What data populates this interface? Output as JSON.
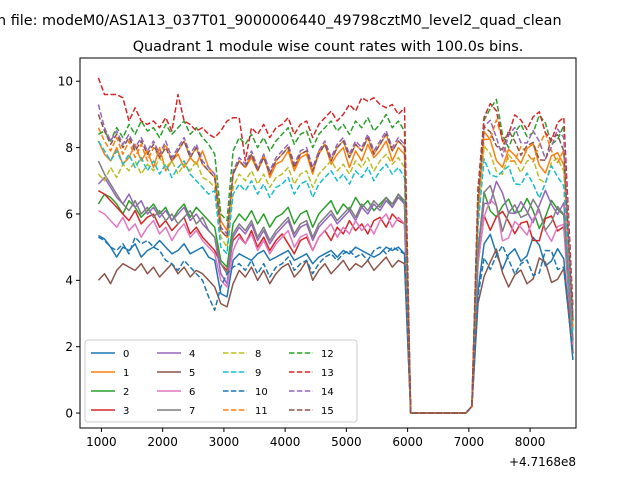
{
  "chart_data": {
    "type": "line",
    "suptitle": "n file: modeM0/AS1A13_037T01_9000006440_49798cztM0_level2_quad_clean",
    "title": "Quadrant 1 module wise count rates with 100.0s bins.",
    "xlabel": "",
    "ylabel": "",
    "x_offset_label": "+4.7168e8",
    "xlim": [
      650,
      8750
    ],
    "ylim": [
      -0.45,
      10.7
    ],
    "xticks": [
      {
        "value": 1000,
        "label": "1000"
      },
      {
        "value": 2000,
        "label": "2000"
      },
      {
        "value": 3000,
        "label": "3000"
      },
      {
        "value": 4000,
        "label": "4000"
      },
      {
        "value": 5000,
        "label": "5000"
      },
      {
        "value": 6000,
        "label": "6000"
      },
      {
        "value": 7000,
        "label": "7000"
      },
      {
        "value": 8000,
        "label": "8000"
      }
    ],
    "yticks": [
      {
        "value": 0,
        "label": "0"
      },
      {
        "value": 2,
        "label": "2"
      },
      {
        "value": 4,
        "label": "4"
      },
      {
        "value": 6,
        "label": "6"
      },
      {
        "value": 8,
        "label": "8"
      },
      {
        "value": 10,
        "label": "10"
      }
    ],
    "legend": {
      "placement": "lower-left",
      "columns": 4
    },
    "x_start": 950,
    "x_step": 100,
    "gap_segment": {
      "start": 6050,
      "end": 6950,
      "value": 0
    },
    "series": [
      {
        "name": "0",
        "color": "#1f77b4",
        "style": "solid",
        "seg_a": [
          5.35,
          5.25,
          5.0,
          4.7,
          5.0,
          4.9,
          5.1,
          4.7,
          4.9,
          5.0,
          5.2,
          5.0,
          4.8,
          4.9,
          5.1,
          4.8,
          4.9,
          5.0,
          4.7,
          4.6,
          3.6,
          3.5,
          4.6,
          4.8,
          4.7,
          4.6,
          4.8,
          4.9,
          4.6,
          4.7,
          4.8,
          4.9,
          4.6,
          4.7,
          4.8,
          4.5,
          4.7,
          4.8,
          4.9,
          4.7,
          4.9,
          4.8,
          5.0,
          4.9,
          4.8,
          4.7,
          4.8,
          5.0,
          4.9,
          5.0,
          4.8
        ],
        "peak_b": 4.9,
        "level_b": 4.8,
        "end": 1.6
      },
      {
        "name": "1",
        "color": "#ff7f0e",
        "style": "solid",
        "seg_a": [
          8.2,
          7.8,
          7.6,
          8.0,
          7.5,
          7.7,
          8.1,
          7.6,
          7.9,
          7.4,
          8.0,
          7.3,
          7.6,
          7.8,
          7.4,
          7.7,
          7.5,
          7.9,
          7.4,
          7.2,
          5.8,
          5.5,
          7.2,
          7.6,
          7.4,
          7.7,
          7.3,
          7.8,
          7.1,
          7.5,
          7.6,
          7.9,
          7.3,
          7.7,
          7.8,
          7.2,
          7.9,
          8.1,
          7.5,
          7.8,
          8.0,
          7.4,
          7.9,
          7.6,
          8.1,
          7.7,
          7.9,
          8.2,
          7.6,
          8.0,
          7.8
        ],
        "peak_b": 8.1,
        "level_b": 7.7,
        "end": 2.6
      },
      {
        "name": "2",
        "color": "#2ca02c",
        "style": "solid",
        "seg_a": [
          6.3,
          6.6,
          6.5,
          6.3,
          6.0,
          6.4,
          6.2,
          5.9,
          6.1,
          6.3,
          6.0,
          6.2,
          5.8,
          6.1,
          6.3,
          5.9,
          6.2,
          6.0,
          5.8,
          5.6,
          4.6,
          4.4,
          5.7,
          6.0,
          5.8,
          6.1,
          5.7,
          6.0,
          5.6,
          5.9,
          6.0,
          6.2,
          5.7,
          6.0,
          6.1,
          5.6,
          6.0,
          6.2,
          6.4,
          6.0,
          6.3,
          6.1,
          6.5,
          6.2,
          6.4,
          6.1,
          6.3,
          6.5,
          6.2,
          6.6,
          6.3
        ],
        "peak_b": 6.4,
        "level_b": 6.1,
        "end": 2.1
      },
      {
        "name": "3",
        "color": "#d62728",
        "style": "solid",
        "seg_a": [
          6.7,
          6.6,
          6.4,
          6.2,
          6.0,
          5.8,
          6.1,
          5.7,
          5.9,
          6.0,
          5.6,
          5.8,
          5.5,
          5.7,
          5.9,
          5.4,
          5.6,
          5.3,
          5.1,
          4.9,
          4.5,
          4.3,
          5.2,
          5.4,
          5.1,
          5.5,
          5.0,
          5.3,
          4.9,
          5.2,
          5.4,
          5.1,
          4.8,
          5.2,
          5.3,
          4.9,
          5.3,
          5.5,
          5.2,
          5.6,
          5.4,
          5.8,
          5.5,
          5.7,
          5.4,
          5.8,
          5.9,
          5.6,
          6.0,
          5.8,
          5.7
        ],
        "peak_b": 6.0,
        "level_b": 5.6,
        "end": 1.8
      },
      {
        "name": "4",
        "color": "#9467bd",
        "style": "solid",
        "seg_a": [
          6.9,
          7.1,
          6.8,
          6.5,
          6.3,
          6.6,
          6.2,
          6.4,
          6.0,
          6.2,
          5.9,
          6.1,
          5.8,
          6.0,
          6.2,
          5.8,
          6.0,
          5.7,
          5.5,
          5.3,
          4.2,
          3.9,
          5.3,
          5.6,
          5.4,
          5.7,
          5.2,
          5.5,
          5.1,
          5.4,
          5.6,
          5.8,
          5.3,
          5.6,
          5.7,
          5.2,
          5.6,
          5.8,
          6.0,
          5.7,
          5.9,
          6.1,
          5.8,
          6.2,
          6.0,
          6.3,
          6.1,
          6.4,
          6.2,
          6.5,
          6.3
        ],
        "peak_b": 6.6,
        "level_b": 6.2,
        "end": 2.2
      },
      {
        "name": "5",
        "color": "#8c564b",
        "style": "solid",
        "seg_a": [
          4.0,
          4.2,
          3.9,
          4.3,
          4.5,
          4.4,
          4.3,
          4.5,
          4.2,
          4.4,
          4.1,
          4.3,
          4.5,
          4.2,
          4.4,
          4.1,
          4.3,
          4.2,
          4.0,
          3.8,
          3.3,
          3.2,
          3.9,
          4.3,
          4.1,
          4.4,
          4.0,
          4.3,
          3.9,
          4.2,
          4.4,
          4.5,
          4.1,
          4.3,
          4.6,
          4.0,
          4.3,
          4.5,
          4.2,
          4.4,
          4.6,
          4.3,
          4.5,
          4.4,
          4.6,
          4.3,
          4.5,
          4.7,
          4.4,
          4.6,
          4.5
        ],
        "peak_b": 4.4,
        "level_b": 4.2,
        "end": 1.8
      },
      {
        "name": "6",
        "color": "#e377c2",
        "style": "solid",
        "seg_a": [
          6.1,
          6.0,
          5.8,
          5.6,
          5.9,
          5.5,
          5.7,
          5.3,
          5.6,
          5.8,
          5.4,
          5.6,
          5.2,
          5.5,
          5.7,
          5.3,
          5.5,
          5.2,
          5.0,
          4.8,
          4.0,
          3.8,
          4.9,
          5.3,
          5.1,
          5.4,
          4.9,
          5.2,
          4.8,
          5.1,
          5.3,
          5.5,
          5.0,
          5.3,
          5.4,
          4.9,
          5.3,
          5.5,
          5.7,
          5.3,
          5.6,
          5.4,
          5.8,
          5.5,
          5.7,
          5.4,
          5.8,
          6.0,
          5.6,
          5.9,
          5.7
        ],
        "peak_b": 6.0,
        "level_b": 5.6,
        "end": 2.0
      },
      {
        "name": "7",
        "color": "#7f7f7f",
        "style": "solid",
        "seg_a": [
          7.6,
          7.2,
          6.9,
          6.6,
          6.3,
          6.1,
          6.4,
          6.0,
          6.2,
          5.9,
          6.1,
          5.8,
          6.0,
          5.7,
          5.9,
          6.1,
          5.7,
          5.9,
          5.5,
          5.3,
          4.5,
          4.2,
          5.4,
          5.7,
          5.5,
          5.8,
          5.3,
          5.6,
          5.2,
          5.5,
          5.7,
          5.9,
          5.4,
          5.7,
          5.8,
          5.3,
          5.7,
          5.9,
          6.1,
          5.8,
          6.0,
          6.2,
          5.9,
          6.3,
          6.1,
          6.4,
          6.2,
          6.5,
          6.3,
          6.6,
          6.4
        ],
        "peak_b": 6.5,
        "level_b": 6.0,
        "end": 2.2
      },
      {
        "name": "8",
        "color": "#bcbd22",
        "style": "dashed",
        "seg_a": [
          7.2,
          7.0,
          7.4,
          7.1,
          7.5,
          7.3,
          7.6,
          7.2,
          7.5,
          7.3,
          7.7,
          7.4,
          7.6,
          7.2,
          7.5,
          7.3,
          7.6,
          7.1,
          7.0,
          6.8,
          5.3,
          5.0,
          6.8,
          7.2,
          7.0,
          7.3,
          6.9,
          7.2,
          6.8,
          7.1,
          7.2,
          7.4,
          6.9,
          7.2,
          7.3,
          6.8,
          7.2,
          7.4,
          7.6,
          7.3,
          7.5,
          7.2,
          7.6,
          7.4,
          7.7,
          7.3,
          7.6,
          7.8,
          7.5,
          7.7,
          7.4
        ],
        "peak_b": 7.8,
        "level_b": 7.4,
        "end": 2.5
      },
      {
        "name": "9",
        "color": "#17becf",
        "style": "dashed",
        "seg_a": [
          8.2,
          7.9,
          7.6,
          7.9,
          7.5,
          7.8,
          7.4,
          7.7,
          7.3,
          7.6,
          7.2,
          7.5,
          7.1,
          7.4,
          7.6,
          7.2,
          7.0,
          6.8,
          6.6,
          6.7,
          5.0,
          4.8,
          6.6,
          6.9,
          6.7,
          7.0,
          6.6,
          6.9,
          6.5,
          6.8,
          6.9,
          7.1,
          6.6,
          6.9,
          7.0,
          6.5,
          6.9,
          7.1,
          7.3,
          7.0,
          7.2,
          6.9,
          7.3,
          7.1,
          7.4,
          7.0,
          7.3,
          7.5,
          7.2,
          7.4,
          7.1
        ],
        "peak_b": 7.5,
        "level_b": 7.0,
        "end": 2.4
      },
      {
        "name": "10",
        "color": "#1f77b4",
        "style": "dashed",
        "seg_a": [
          5.3,
          5.2,
          5.0,
          4.9,
          5.1,
          4.8,
          5.3,
          5.1,
          5.2,
          5.0,
          4.9,
          4.6,
          4.5,
          4.3,
          4.6,
          4.4,
          4.2,
          4.0,
          3.5,
          3.1,
          3.8,
          4.2,
          4.4,
          4.5,
          4.3,
          4.6,
          4.2,
          4.5,
          4.1,
          4.4,
          4.5,
          4.7,
          4.3,
          4.5,
          4.6,
          4.2,
          4.5,
          4.7,
          4.8,
          4.6,
          4.8,
          4.9,
          4.7,
          4.8,
          4.6,
          4.9,
          5.0,
          4.8,
          5.0,
          4.9,
          4.8
        ],
        "peak_b": 4.7,
        "level_b": 4.5,
        "end": 1.8
      },
      {
        "name": "11",
        "color": "#ff7f0e",
        "style": "dashed",
        "seg_a": [
          8.6,
          8.2,
          7.9,
          8.3,
          7.8,
          8.2,
          7.7,
          8.1,
          7.6,
          8.0,
          7.7,
          8.1,
          7.6,
          7.9,
          8.2,
          7.7,
          8.0,
          7.5,
          7.3,
          7.1,
          5.5,
          5.3,
          7.2,
          7.6,
          7.4,
          7.8,
          7.3,
          7.7,
          7.2,
          7.6,
          7.8,
          8.0,
          7.4,
          7.8,
          7.9,
          7.3,
          7.8,
          8.1,
          7.6,
          8.0,
          8.2,
          7.7,
          8.1,
          7.9,
          8.3,
          7.8,
          8.1,
          8.4,
          7.9,
          8.2,
          8.0
        ],
        "peak_b": 8.4,
        "level_b": 7.9,
        "end": 2.6
      },
      {
        "name": "12",
        "color": "#2ca02c",
        "style": "dashed",
        "seg_a": [
          8.4,
          8.5,
          8.2,
          8.6,
          8.3,
          8.7,
          8.4,
          8.8,
          8.5,
          8.6,
          8.3,
          8.7,
          8.4,
          8.6,
          8.8,
          8.4,
          8.6,
          8.3,
          8.1,
          7.8,
          6.0,
          5.8,
          7.9,
          8.3,
          8.1,
          8.4,
          8.0,
          8.3,
          7.9,
          8.2,
          8.4,
          8.6,
          8.1,
          8.4,
          8.5,
          8.0,
          8.4,
          8.6,
          8.8,
          8.5,
          8.7,
          8.4,
          8.8,
          8.6,
          8.9,
          8.5,
          8.7,
          9.0,
          8.6,
          8.8,
          8.5
        ],
        "peak_b": 9.0,
        "level_b": 8.5,
        "end": 2.8
      },
      {
        "name": "13",
        "color": "#d62728",
        "style": "dashed",
        "seg_a": [
          10.1,
          9.6,
          9.6,
          9.6,
          9.5,
          8.8,
          9.2,
          8.8,
          8.7,
          8.8,
          8.6,
          8.9,
          8.5,
          9.6,
          8.8,
          8.7,
          8.5,
          8.6,
          8.4,
          8.3,
          8.5,
          8.8,
          8.9,
          8.9,
          7.6,
          8.6,
          8.4,
          8.7,
          8.3,
          8.6,
          8.7,
          8.9,
          8.4,
          8.7,
          8.8,
          8.3,
          8.7,
          8.9,
          9.1,
          8.8,
          9.0,
          9.3,
          9.1,
          9.5,
          9.4,
          9.5,
          9.3,
          9.2,
          9.3,
          9.0,
          9.2
        ],
        "peak_b": 9.0,
        "level_b": 8.7,
        "end": 3.2
      },
      {
        "name": "14",
        "color": "#9467bd",
        "style": "dashed",
        "seg_a": [
          9.3,
          8.6,
          8.2,
          8.5,
          8.1,
          8.4,
          8.0,
          8.3,
          7.9,
          8.2,
          7.8,
          8.2,
          7.7,
          8.0,
          8.3,
          7.8,
          8.1,
          7.6,
          7.4,
          7.2,
          5.6,
          5.4,
          7.3,
          7.7,
          7.5,
          7.9,
          7.4,
          7.8,
          7.3,
          7.7,
          7.9,
          8.1,
          7.5,
          7.9,
          8.0,
          7.4,
          7.9,
          8.2,
          7.7,
          8.1,
          8.3,
          7.8,
          8.2,
          8.0,
          8.4,
          7.9,
          8.2,
          8.5,
          8.0,
          8.3,
          8.1
        ],
        "peak_b": 8.6,
        "level_b": 8.2,
        "end": 2.9
      },
      {
        "name": "15",
        "color": "#8c564b",
        "style": "dashed",
        "seg_a": [
          9.0,
          8.5,
          8.1,
          8.4,
          8.0,
          8.3,
          7.9,
          8.2,
          7.8,
          8.1,
          7.7,
          8.0,
          7.6,
          7.9,
          8.2,
          7.7,
          8.0,
          7.5,
          7.3,
          7.1,
          5.5,
          5.3,
          7.2,
          7.6,
          7.4,
          7.8,
          7.3,
          7.7,
          7.2,
          7.6,
          7.8,
          8.0,
          7.4,
          7.8,
          7.9,
          7.3,
          7.8,
          8.1,
          7.6,
          8.0,
          8.2,
          7.7,
          8.1,
          7.9,
          8.3,
          7.8,
          8.1,
          8.4,
          7.9,
          8.2,
          8.0
        ],
        "peak_b": 8.5,
        "level_b": 8.0,
        "end": 2.8
      }
    ]
  }
}
